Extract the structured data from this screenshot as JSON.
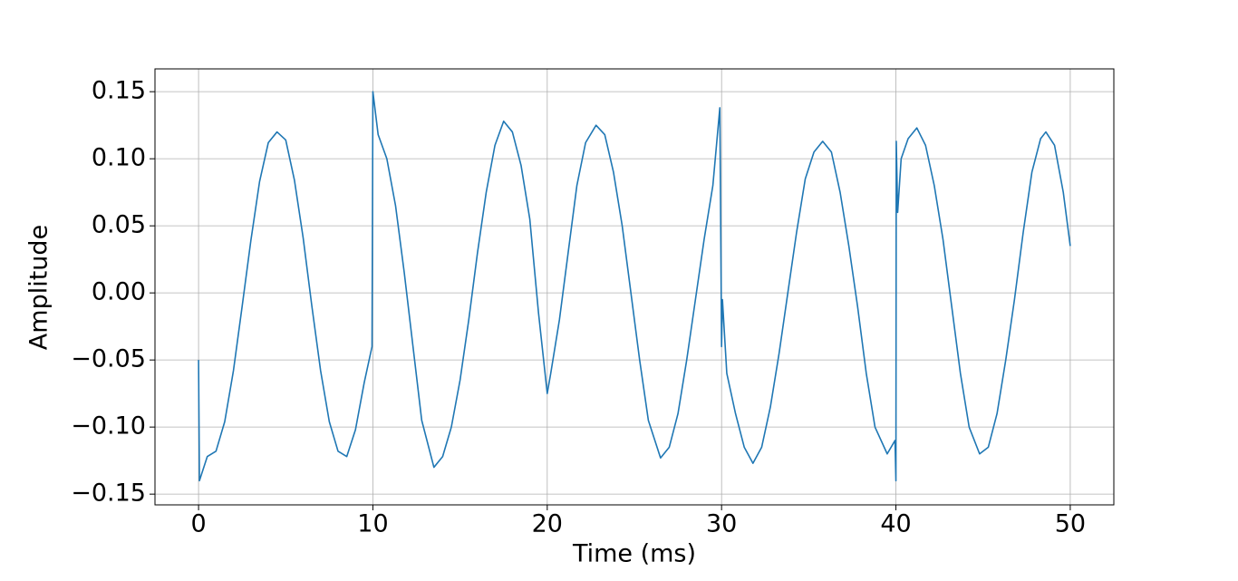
{
  "chart_data": {
    "type": "line",
    "xlabel": "Time (ms)",
    "ylabel": "Amplitude",
    "color": "#1f77b4",
    "grid": true,
    "xlim": [
      -2.5,
      52.5
    ],
    "xticks": [
      0,
      10,
      20,
      30,
      40,
      50
    ],
    "ylim": [
      -0.158,
      0.167
    ],
    "yticks": [
      {
        "value": -0.15,
        "label": "−0.15"
      },
      {
        "value": -0.1,
        "label": "−0.10"
      },
      {
        "value": -0.05,
        "label": "−0.05"
      },
      {
        "value": 0,
        "label": "0.00"
      },
      0.05,
      {
        "value": 0.1,
        "label": "0.10"
      },
      0.15
    ],
    "x": [
      0,
      0.05,
      0.5,
      1,
      1.5,
      2,
      2.5,
      3,
      3.5,
      4,
      4.5,
      5,
      5.5,
      6,
      6.5,
      7,
      7.5,
      8,
      8.5,
      9,
      9.5,
      9.95,
      10,
      10.3,
      10.8,
      11.3,
      11.8,
      12.3,
      12.8,
      13.5,
      14,
      14.5,
      15,
      15.5,
      16,
      16.5,
      17,
      17.5,
      18,
      18.5,
      19,
      19.5,
      20,
      20.2,
      20.7,
      21.2,
      21.7,
      22.2,
      22.8,
      23.3,
      23.8,
      24.3,
      24.8,
      25.3,
      25.8,
      26.5,
      27,
      27.5,
      28,
      28.5,
      29,
      29.5,
      29.9,
      30,
      30.05,
      30.3,
      30.8,
      31.3,
      31.8,
      32.3,
      32.8,
      33.3,
      33.8,
      34.3,
      34.8,
      35.3,
      35.8,
      36.3,
      36.8,
      37.3,
      37.8,
      38.3,
      38.8,
      39.5,
      39.95,
      40,
      40.02,
      40.1,
      40.3,
      40.7,
      41.2,
      41.7,
      42.2,
      42.7,
      43.2,
      43.7,
      44.2,
      44.8,
      45.3,
      45.8,
      46.3,
      46.8,
      47.3,
      47.8,
      48.3,
      48.6,
      49.1,
      49.6,
      50
    ],
    "values": [
      -0.05,
      -0.14,
      -0.122,
      -0.118,
      -0.096,
      -0.058,
      -0.01,
      0.039,
      0.083,
      0.112,
      0.12,
      0.114,
      0.084,
      0.041,
      -0.01,
      -0.058,
      -0.096,
      -0.118,
      -0.122,
      -0.102,
      -0.067,
      -0.04,
      0.15,
      0.118,
      0.1,
      0.065,
      0.015,
      -0.04,
      -0.095,
      -0.13,
      -0.122,
      -0.1,
      -0.065,
      -0.02,
      0.03,
      0.075,
      0.11,
      0.128,
      0.12,
      0.095,
      0.055,
      -0.015,
      -0.075,
      -0.06,
      -0.02,
      0.03,
      0.08,
      0.112,
      0.125,
      0.118,
      0.09,
      0.05,
      0,
      -0.05,
      -0.095,
      -0.123,
      -0.115,
      -0.09,
      -0.05,
      -0.005,
      0.04,
      0.08,
      0.138,
      -0.04,
      -0.005,
      -0.06,
      -0.09,
      -0.115,
      -0.127,
      -0.115,
      -0.085,
      -0.045,
      0,
      0.045,
      0.085,
      0.105,
      0.113,
      0.105,
      0.075,
      0.035,
      -0.01,
      -0.06,
      -0.1,
      -0.12,
      -0.11,
      -0.14,
      0.113,
      0.06,
      0.1,
      0.115,
      0.123,
      0.11,
      0.08,
      0.04,
      -0.01,
      -0.06,
      -0.1,
      -0.12,
      -0.115,
      -0.09,
      -0.05,
      -0.005,
      0.045,
      0.09,
      0.115,
      0.12,
      0.11,
      0.075,
      0.035
    ]
  }
}
